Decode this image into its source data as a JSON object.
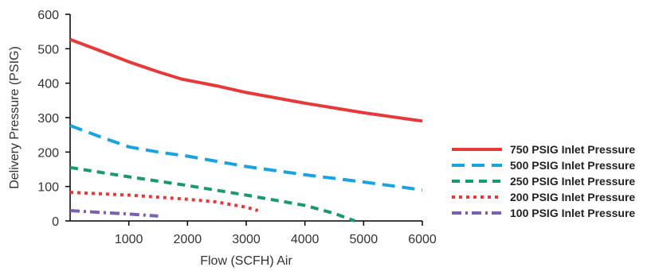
{
  "chart_data": {
    "type": "line",
    "title": "",
    "xlabel": "Flow (SCFH) Air",
    "ylabel": "Delivery Pressure (PSIG)",
    "xlim": [
      0,
      6000
    ],
    "ylim": [
      0,
      600
    ],
    "xticks": [
      1000,
      2000,
      3000,
      4000,
      5000,
      6000
    ],
    "yticks": [
      0,
      100,
      200,
      300,
      400,
      500,
      600
    ],
    "grid": false,
    "legend_position": "right",
    "series": [
      {
        "name": "750 PSIG Inlet Pressure",
        "color": "#e63a3a",
        "dash": "solid",
        "x": [
          0,
          500,
          1000,
          1500,
          1900,
          2500,
          3000,
          4000,
          5000,
          6000
        ],
        "y": [
          527,
          495,
          462,
          433,
          412,
          392,
          373,
          342,
          314,
          290
        ]
      },
      {
        "name": "500 PSIG Inlet Pressure",
        "color": "#1aa3e0",
        "dash": "long-dash",
        "x": [
          0,
          500,
          1000,
          1500,
          2000,
          3000,
          4000,
          5000,
          6000
        ],
        "y": [
          277,
          245,
          215,
          200,
          188,
          158,
          134,
          113,
          90
        ]
      },
      {
        "name": "250 PSIG Inlet Pressure",
        "color": "#1a9a6a",
        "dash": "dash",
        "x": [
          0,
          1000,
          2000,
          3000,
          4000,
          4500,
          4850
        ],
        "y": [
          155,
          128,
          103,
          75,
          45,
          22,
          0
        ]
      },
      {
        "name": "200 PSIG Inlet Pressure",
        "color": "#e63a3a",
        "dash": "dot",
        "x": [
          0,
          500,
          1000,
          2000,
          2500,
          3000,
          3200
        ],
        "y": [
          83,
          79,
          75,
          63,
          55,
          40,
          30
        ]
      },
      {
        "name": "100 PSIG Inlet Pressure",
        "color": "#7b5fb0",
        "dash": "dash-dot",
        "x": [
          0,
          500,
          1000,
          1500
        ],
        "y": [
          30,
          25,
          20,
          14
        ]
      }
    ]
  }
}
